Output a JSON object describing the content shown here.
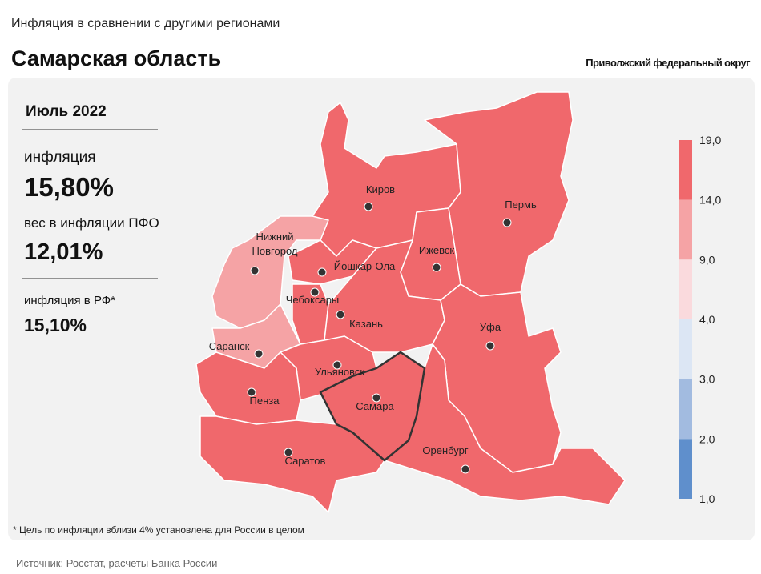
{
  "header": {
    "supertitle": "Инфляция в сравнении с другими регионами",
    "title": "Самарская область",
    "district": "Приволжский федеральный округ"
  },
  "panel": {
    "period": "Июль 2022",
    "inflation_label": "инфляция",
    "inflation_value": "15,80%",
    "weight_label": "вес в инфляции ПФО",
    "weight_value": "12,01%",
    "rf_label": "инфляция в РФ*",
    "rf_value": "15,10%"
  },
  "legend": {
    "ticks": [
      "19,0",
      "14,0",
      "9,0",
      "4,0",
      "3,0",
      "2,0",
      "1,0"
    ],
    "colors": [
      "#f0686c",
      "#f5a3a5",
      "#fadadd",
      "#dce6f4",
      "#a2bbe0",
      "#5f8fcc"
    ]
  },
  "cities": [
    {
      "name": "Киров"
    },
    {
      "name": "Пермь"
    },
    {
      "name": "Ижевск"
    },
    {
      "name_lines": [
        "Нижний",
        "Новгород"
      ]
    },
    {
      "name": "Йошкар-Ола"
    },
    {
      "name": "Чебоксары"
    },
    {
      "name": "Казань"
    },
    {
      "name": "Уфа"
    },
    {
      "name": "Саранск"
    },
    {
      "name": "Ульяновск"
    },
    {
      "name": "Пенза"
    },
    {
      "name": "Самара"
    },
    {
      "name": "Саратов"
    },
    {
      "name": "Оренбург"
    }
  ],
  "footnote": "* Цель по инфляции вблизи 4% установлена для России в целом",
  "source": "Источник: Росстат, расчеты Банка России"
}
